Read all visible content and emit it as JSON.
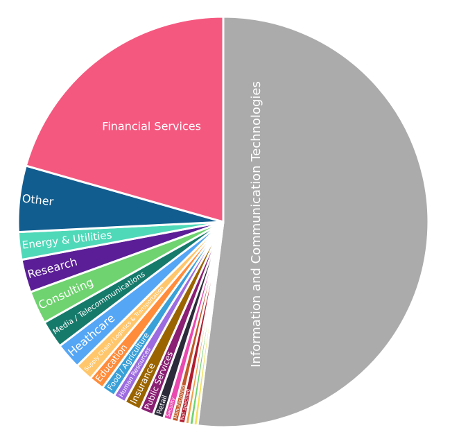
{
  "chart_data": {
    "type": "pie",
    "title": "",
    "legend": "none",
    "slices": [
      {
        "label": "Information and Communication Technologies",
        "value": 48.0,
        "color": "#ababab",
        "label_size": 18
      },
      {
        "label": "",
        "value": 0.3,
        "color": "#f5e05a",
        "label_size": 0
      },
      {
        "label": "",
        "value": 0.3,
        "color": "#6fd36f",
        "label_size": 0
      },
      {
        "label": "",
        "value": 0.3,
        "color": "#f0a04b",
        "label_size": 0
      },
      {
        "label": "Not specified",
        "value": 0.5,
        "color": "#b01e2f",
        "label_size": 7
      },
      {
        "label": "Manufacturing",
        "value": 0.5,
        "color": "#c0592a",
        "label_size": 7
      },
      {
        "label": "Security",
        "value": 0.6,
        "color": "#e94ab0",
        "label_size": 7
      },
      {
        "label": "Retail",
        "value": 0.8,
        "color": "#2b2b3a",
        "label_size": 10
      },
      {
        "label": "Public Services",
        "value": 1.0,
        "color": "#8a1f73",
        "label_size": 12
      },
      {
        "label": "Insurance",
        "value": 1.2,
        "color": "#9a6400",
        "label_size": 13
      },
      {
        "label": "Human Resources",
        "value": 0.9,
        "color": "#9d6ce0",
        "label_size": 9
      },
      {
        "label": "Food / Agriculture",
        "value": 1.0,
        "color": "#3aa0d8",
        "label_size": 11
      },
      {
        "label": "Education",
        "value": 1.1,
        "color": "#ff8c3a",
        "label_size": 13
      },
      {
        "label": "Supply Chain / Logistics & Transportation",
        "value": 1.3,
        "color": "#ffc66b",
        "label_size": 8
      },
      {
        "label": "Heathcare",
        "value": 1.9,
        "color": "#55a6f5",
        "label_size": 16
      },
      {
        "label": "Media / Telecommunications",
        "value": 2.0,
        "color": "#167a6b",
        "label_size": 11
      },
      {
        "label": "Consulting",
        "value": 2.4,
        "color": "#6fd36f",
        "label_size": 16
      },
      {
        "label": "Research",
        "value": 2.4,
        "color": "#5b1e96",
        "label_size": 16
      },
      {
        "label": "Energy & Utilities",
        "value": 2.0,
        "color": "#4fd9b9",
        "label_size": 15
      },
      {
        "label": "Other",
        "value": 4.8,
        "color": "#125d8f",
        "label_size": 16
      },
      {
        "label": "Financial Services",
        "value": 19.0,
        "color": "#f5587f",
        "label_size": 16
      }
    ]
  }
}
